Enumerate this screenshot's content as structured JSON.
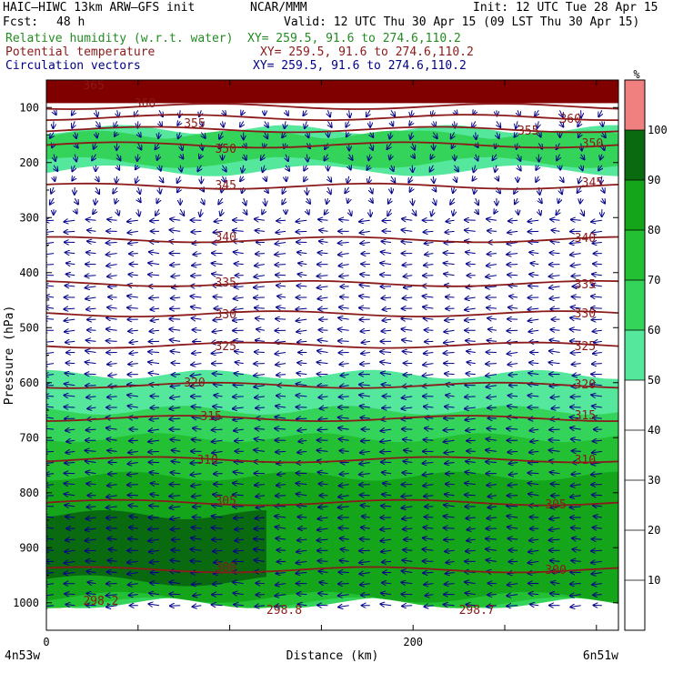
{
  "header": {
    "model": "HAIC–HIWC 13km ARW–GFS init",
    "org": "NCAR/MMM",
    "init": "Init: 12 UTC Tue 28 Apr 15",
    "fcst_label": "Fcst:",
    "fcst_value": "48 h",
    "valid": "Valid: 12 UTC Thu 30 Apr 15 (09 LST Thu 30 Apr 15)",
    "fields": [
      {
        "name": "Relative humidity (w.r.t. water)",
        "xy": "XY= 259.5, 91.6 to 274.6,110.2",
        "color": "#228b22"
      },
      {
        "name": "Potential temperature",
        "xy": "XY= 259.5, 91.6 to 274.6,110.2",
        "color": "#8b1a1a"
      },
      {
        "name": "Circulation vectors",
        "xy": "XY= 259.5, 91.6 to 274.6,110.2",
        "color": "#00008b"
      }
    ]
  },
  "chart_data": {
    "type": "cross-section",
    "ylabel": "Pressure (hPa)",
    "xlabel": "Distance (km)",
    "x_range": [
      0,
      312
    ],
    "y_range": [
      50,
      1050
    ],
    "y_ticks": [
      100,
      200,
      300,
      400,
      500,
      600,
      700,
      800,
      900,
      1000
    ],
    "x_ticks": [
      0,
      200
    ],
    "left_endpoint": "4n53w",
    "right_endpoint": "6n51w",
    "colorbar": {
      "unit": "%",
      "levels": [
        10,
        20,
        30,
        40,
        50,
        60,
        70,
        80,
        90,
        100
      ],
      "colors": {
        "50-60": "#55e89c",
        "60-70": "#34d45a",
        "70-80": "#22c032",
        "80-90": "#15a51a",
        "90-100": "#0a6a10",
        "100+": "#f08080"
      }
    },
    "rh_regions": [
      {
        "class": "50-60",
        "p_top": 140,
        "p_bottom": 215,
        "x_start": 0,
        "x_end": 312
      },
      {
        "class": "60-70",
        "p_top": 150,
        "p_bottom": 200,
        "x_start": 0,
        "x_end": 312
      },
      {
        "class": "60-70",
        "p_top": 150,
        "p_bottom": 180,
        "x_start": 40,
        "x_end": 312
      },
      {
        "class": "50-60",
        "p_top": 585,
        "p_bottom": 700,
        "x_start": 0,
        "x_end": 312
      },
      {
        "class": "60-70",
        "p_top": 650,
        "p_bottom": 1000,
        "x_start": 0,
        "x_end": 312
      },
      {
        "class": "70-80",
        "p_top": 700,
        "p_bottom": 1000,
        "x_start": 0,
        "x_end": 312
      },
      {
        "class": "80-90",
        "p_top": 770,
        "p_bottom": 990,
        "x_start": 0,
        "x_end": 312
      },
      {
        "class": "90-100",
        "p_top": 840,
        "p_bottom": 960,
        "x_start": 0,
        "x_end": 120
      }
    ],
    "theta_contours": [
      {
        "value": 365,
        "p": 98
      },
      {
        "value": 360,
        "p": 118
      },
      {
        "value": 355,
        "p": 140
      },
      {
        "value": 350,
        "p": 168
      },
      {
        "value": 345,
        "p": 243
      },
      {
        "value": 340,
        "p": 340
      },
      {
        "value": 335,
        "p": 420
      },
      {
        "value": 330,
        "p": 475
      },
      {
        "value": 325,
        "p": 532
      },
      {
        "value": 320,
        "p": 605
      },
      {
        "value": 315,
        "p": 665
      },
      {
        "value": 310,
        "p": 740
      },
      {
        "value": 305,
        "p": 818
      },
      {
        "value": 300,
        "p": 940
      },
      {
        "value": 298.2,
        "p": 985
      },
      {
        "value": 298.8,
        "p": 1005
      },
      {
        "value": 298.7,
        "p": 1005
      }
    ],
    "contour_labels": [
      "365",
      "360",
      "355",
      "350",
      "345",
      "340",
      "335",
      "330",
      "325",
      "320",
      "315",
      "310",
      "305",
      "300",
      "298.2",
      "298.8",
      "298.7"
    ],
    "vectors": "westward (right-to-left) flow in mid levels, weak/variable aloft"
  }
}
